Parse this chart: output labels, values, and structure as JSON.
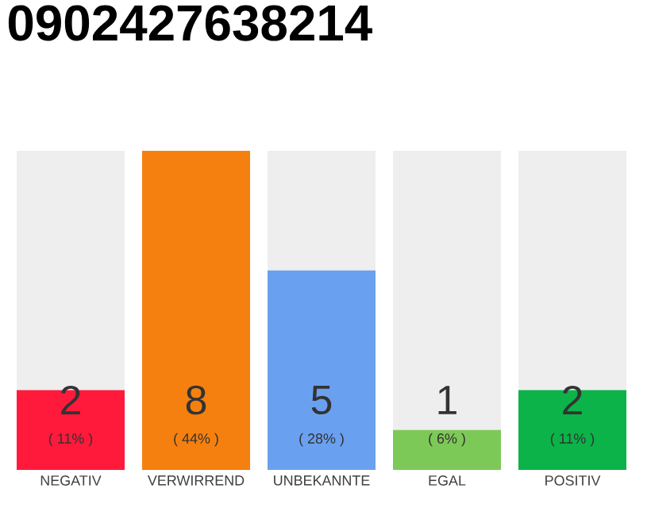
{
  "chart_data": {
    "type": "bar",
    "title": "0902427638214",
    "categories": [
      "NEGATIV",
      "VERWIRREND",
      "UNBEKANNTE",
      "EGAL",
      "POSITIV"
    ],
    "values": [
      2,
      8,
      5,
      1,
      2
    ],
    "colors": [
      "#ff1a3c",
      "#f5800f",
      "#6aa0f0",
      "#7dc958",
      "#0bb349"
    ],
    "ylim": [
      0,
      8
    ],
    "data_labels": true,
    "annotations": [
      "( 11% )",
      "( 44% )",
      "( 28% )",
      "( 6% )",
      "( 11% )"
    ]
  }
}
